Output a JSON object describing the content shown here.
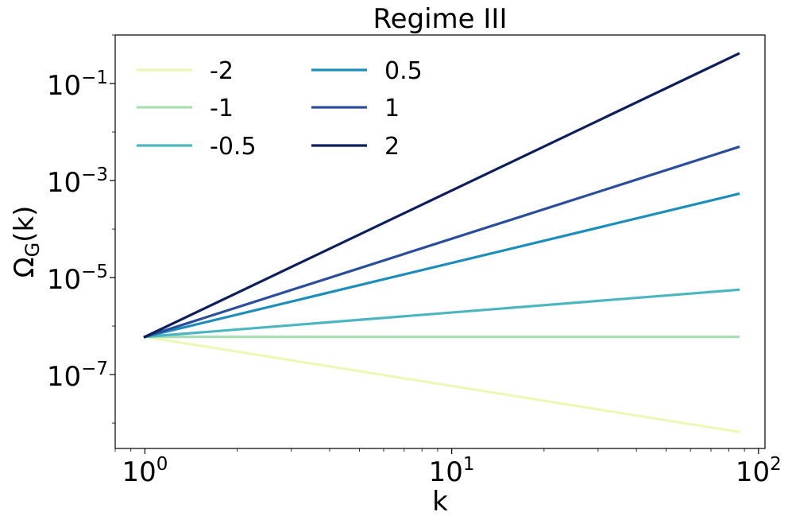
{
  "chart_data": {
    "type": "line",
    "title": "Regime III",
    "xlabel": "k",
    "ylabel": {
      "main": "Ω",
      "sub": "G",
      "tail": "(k)"
    },
    "xscale": "log",
    "yscale": "log",
    "xlim": [
      0.8,
      105
    ],
    "ylim": [
      3e-09,
      1.0
    ],
    "x_ticks": [
      {
        "value": 1,
        "base": "10",
        "exp": "0"
      },
      {
        "value": 10,
        "base": "10",
        "exp": "1"
      },
      {
        "value": 100,
        "base": "10",
        "exp": "2"
      }
    ],
    "y_ticks": [
      {
        "value": 1e-07,
        "base": "10",
        "exp": "−7"
      },
      {
        "value": 1e-05,
        "base": "10",
        "exp": "−5"
      },
      {
        "value": 0.001,
        "base": "10",
        "exp": "−3"
      },
      {
        "value": 0.1,
        "base": "10",
        "exp": "−1"
      }
    ],
    "grid": false,
    "legend": {
      "placement": "top-left",
      "columns": 2
    },
    "x": [
      1,
      86
    ],
    "series": [
      {
        "name": "-2",
        "color": "#eef8b6",
        "values": [
          6e-07,
          6.6e-09
        ]
      },
      {
        "name": "-1",
        "color": "#a9deb3",
        "values": [
          6e-07,
          6e-07
        ]
      },
      {
        "name": "-0.5",
        "color": "#4cb6c0",
        "values": [
          6e-07,
          5.6e-06
        ]
      },
      {
        "name": "0.5",
        "color": "#1d8eba",
        "values": [
          6e-07,
          0.00053
        ]
      },
      {
        "name": "1",
        "color": "#2a4d9c",
        "values": [
          6e-07,
          0.0049
        ]
      },
      {
        "name": "2",
        "color": "#0c1f5a",
        "values": [
          6e-07,
          0.41
        ]
      }
    ]
  }
}
